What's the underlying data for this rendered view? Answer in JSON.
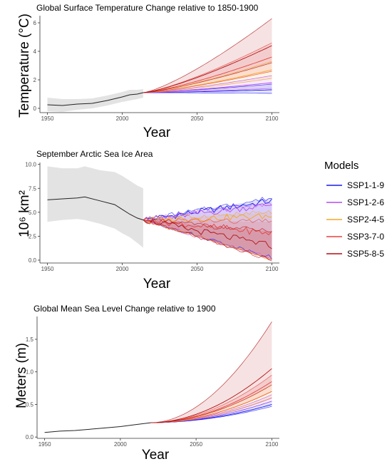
{
  "colors": {
    "SSP1-1-9": "#1a1aee",
    "SSP1-2-6": "#b44be8",
    "SSP2-4-5": "#f5a623",
    "SSP3-7-0": "#e8413c",
    "SSP5-8-5": "#b30f12",
    "historical": "#222222",
    "hist_band": "#e3e3e3"
  },
  "legend": {
    "title": "Models",
    "items": [
      "SSP1-1-9",
      "SSP1-2-6",
      "SSP2-4-5",
      "SSP3-7-0",
      "SSP5-8-5"
    ]
  },
  "chart_data": [
    {
      "type": "line",
      "title": "Global Surface Temperature Change relative to 1850-1900",
      "xlabel": "Year",
      "ylabel": "Temperature (°C)",
      "xlim": [
        1945,
        2105
      ],
      "ylim": [
        -0.3,
        6.5
      ],
      "xticks": [
        1950,
        2000,
        2050,
        2100
      ],
      "yticks": [
        0,
        2,
        4,
        6
      ],
      "historical": {
        "x": [
          1950,
          1960,
          1970,
          1980,
          1990,
          2000,
          2005,
          2010,
          2014
        ],
        "y": [
          0.25,
          0.2,
          0.3,
          0.35,
          0.55,
          0.8,
          0.95,
          1.0,
          1.1
        ],
        "lower": [
          -0.2,
          -0.25,
          -0.1,
          0.0,
          0.2,
          0.45,
          0.55,
          0.65,
          0.75
        ],
        "upper": [
          0.75,
          0.65,
          0.65,
          0.7,
          0.9,
          1.15,
          1.3,
          1.3,
          1.35
        ]
      },
      "series": [
        {
          "name": "SSP1-1-9",
          "start": 1.1,
          "end": 1.3,
          "low": 1.05,
          "high": 1.7
        },
        {
          "name": "SSP1-2-6",
          "start": 1.1,
          "end": 1.8,
          "low": 1.4,
          "high": 2.3
        },
        {
          "name": "SSP2-4-5",
          "start": 1.1,
          "end": 2.7,
          "low": 2.1,
          "high": 3.3
        },
        {
          "name": "SSP3-7-0",
          "start": 1.1,
          "end": 3.6,
          "low": 2.6,
          "high": 4.6
        },
        {
          "name": "SSP5-8-5",
          "start": 1.1,
          "end": 4.4,
          "low": 3.2,
          "high": 6.3
        }
      ]
    },
    {
      "type": "line",
      "title": "September Arctic Sea Ice Area",
      "xlabel": "Year",
      "ylabel": "10⁶ km²",
      "xlim": [
        1945,
        2105
      ],
      "ylim": [
        -0.3,
        10.2
      ],
      "xticks": [
        1950,
        2000,
        2050,
        2100
      ],
      "yticks": [
        0.0,
        2.5,
        5.0,
        7.5,
        10.0
      ],
      "historical": {
        "x": [
          1950,
          1960,
          1970,
          1975,
          1985,
          1995,
          2000,
          2005,
          2010,
          2014
        ],
        "y": [
          6.3,
          6.4,
          6.5,
          6.6,
          6.2,
          5.8,
          5.3,
          4.8,
          4.4,
          4.2
        ],
        "lower": [
          4.0,
          4.2,
          4.3,
          4.2,
          3.8,
          3.3,
          2.8,
          2.4,
          1.8,
          1.3
        ],
        "upper": [
          9.8,
          9.6,
          9.6,
          9.8,
          9.4,
          9.2,
          8.8,
          8.3,
          7.8,
          7.5
        ]
      },
      "series": [
        {
          "name": "SSP1-1-9",
          "start": 4.2,
          "end": 6.2,
          "low": 0.3,
          "high": 6.5
        },
        {
          "name": "SSP1-2-6",
          "start": 4.2,
          "end": 5.8,
          "low": 0.2,
          "high": 6.0
        },
        {
          "name": "SSP2-4-5",
          "start": 4.2,
          "end": 4.6,
          "low": 0.1,
          "high": 5.0
        },
        {
          "name": "SSP3-7-0",
          "start": 4.2,
          "end": 2.8,
          "low": 0.05,
          "high": 4.0
        },
        {
          "name": "SSP5-8-5",
          "start": 4.2,
          "end": 1.5,
          "low": 0.0,
          "high": 3.0
        }
      ]
    },
    {
      "type": "line",
      "title": "Global Mean Sea Level Change relative to 1900",
      "xlabel": "Year",
      "ylabel": "Meters (m)",
      "xlim": [
        1945,
        2105
      ],
      "ylim": [
        -0.02,
        1.85
      ],
      "xticks": [
        1950,
        2000,
        2050,
        2100
      ],
      "yticks": [
        0.0,
        0.5,
        1.0,
        1.5
      ],
      "historical": {
        "x": [
          1950,
          1960,
          1970,
          1980,
          1990,
          2000,
          2010,
          2020
        ],
        "y": [
          0.07,
          0.09,
          0.1,
          0.12,
          0.14,
          0.16,
          0.19,
          0.22
        ]
      },
      "series": [
        {
          "name": "SSP1-1-9",
          "start": 0.22,
          "end": 0.5,
          "low": 0.47,
          "high": 0.55
        },
        {
          "name": "SSP1-2-6",
          "start": 0.22,
          "end": 0.6,
          "low": 0.55,
          "high": 0.65
        },
        {
          "name": "SSP2-4-5",
          "start": 0.22,
          "end": 0.7,
          "low": 0.6,
          "high": 0.8
        },
        {
          "name": "SSP3-7-0",
          "start": 0.22,
          "end": 0.85,
          "low": 0.7,
          "high": 0.95
        },
        {
          "name": "SSP5-8-5",
          "start": 0.22,
          "end": 1.05,
          "low": 0.8,
          "high": 1.77
        }
      ]
    }
  ]
}
